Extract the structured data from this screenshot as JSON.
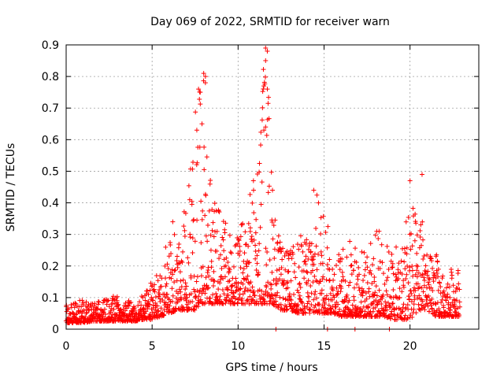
{
  "chart_data": {
    "type": "scatter",
    "title": "Day 069 of 2022, SRMTID for receiver warn",
    "xlabel": "GPS time / hours",
    "ylabel": "SRMTID / TECUs",
    "xlim": [
      0,
      24
    ],
    "ylim": [
      0,
      0.9
    ],
    "xticks": [
      0,
      5,
      10,
      15,
      20
    ],
    "yticks": [
      0,
      0.1,
      0.2,
      0.3,
      0.4,
      0.5,
      0.6,
      0.7,
      0.8,
      0.9
    ],
    "grid": true,
    "marker": "+",
    "color": "#ff0000",
    "series": [
      {
        "name": "SRMTID",
        "envelope": [
          [
            0.0,
            0.02,
            0.08
          ],
          [
            0.5,
            0.02,
            0.09
          ],
          [
            1.0,
            0.02,
            0.095
          ],
          [
            1.5,
            0.025,
            0.08
          ],
          [
            2.0,
            0.025,
            0.09
          ],
          [
            2.5,
            0.025,
            0.1
          ],
          [
            3.0,
            0.025,
            0.11
          ],
          [
            3.5,
            0.025,
            0.09
          ],
          [
            4.0,
            0.025,
            0.09
          ],
          [
            4.5,
            0.03,
            0.11
          ],
          [
            5.0,
            0.03,
            0.16
          ],
          [
            5.5,
            0.04,
            0.2
          ],
          [
            6.0,
            0.05,
            0.34
          ],
          [
            6.5,
            0.06,
            0.3
          ],
          [
            7.0,
            0.06,
            0.4
          ],
          [
            7.5,
            0.06,
            0.7
          ],
          [
            7.8,
            0.08,
            0.76
          ],
          [
            8.0,
            0.08,
            0.82
          ],
          [
            8.5,
            0.08,
            0.4
          ],
          [
            9.0,
            0.08,
            0.4
          ],
          [
            9.5,
            0.08,
            0.3
          ],
          [
            10.0,
            0.08,
            0.3
          ],
          [
            10.5,
            0.08,
            0.4
          ],
          [
            11.0,
            0.08,
            0.5
          ],
          [
            11.5,
            0.08,
            0.89
          ],
          [
            11.7,
            0.08,
            0.88
          ],
          [
            12.0,
            0.08,
            0.45
          ],
          [
            12.5,
            0.06,
            0.26
          ],
          [
            13.0,
            0.06,
            0.25
          ],
          [
            13.5,
            0.05,
            0.3
          ],
          [
            14.0,
            0.05,
            0.3
          ],
          [
            14.5,
            0.05,
            0.44
          ],
          [
            15.0,
            0.05,
            0.4
          ],
          [
            15.5,
            0.05,
            0.25
          ],
          [
            16.0,
            0.04,
            0.25
          ],
          [
            16.5,
            0.04,
            0.29
          ],
          [
            17.0,
            0.04,
            0.27
          ],
          [
            17.5,
            0.04,
            0.25
          ],
          [
            18.0,
            0.04,
            0.32
          ],
          [
            18.5,
            0.04,
            0.28
          ],
          [
            19.0,
            0.03,
            0.26
          ],
          [
            19.5,
            0.03,
            0.26
          ],
          [
            20.0,
            0.03,
            0.48
          ],
          [
            20.5,
            0.06,
            0.3
          ],
          [
            20.7,
            0.06,
            0.49
          ],
          [
            21.0,
            0.06,
            0.23
          ],
          [
            21.5,
            0.04,
            0.25
          ],
          [
            22.0,
            0.04,
            0.15
          ],
          [
            22.5,
            0.04,
            0.21
          ],
          [
            22.9,
            0.04,
            0.2
          ]
        ],
        "outliers": [
          [
            7.7,
            0.76
          ],
          [
            7.8,
            0.75
          ],
          [
            8.0,
            0.81
          ],
          [
            8.1,
            0.8
          ],
          [
            8.1,
            0.78
          ],
          [
            7.9,
            0.65
          ],
          [
            7.6,
            0.63
          ],
          [
            11.6,
            0.89
          ],
          [
            11.7,
            0.88
          ],
          [
            11.6,
            0.85
          ],
          [
            11.5,
            0.77
          ],
          [
            11.7,
            0.76
          ],
          [
            11.6,
            0.64
          ],
          [
            11.5,
            0.63
          ],
          [
            12.0,
            0.44
          ],
          [
            10.9,
            0.44
          ],
          [
            14.4,
            0.44
          ],
          [
            20.7,
            0.49
          ],
          [
            20.0,
            0.47
          ],
          [
            18.2,
            0.31
          ],
          [
            6.2,
            0.34
          ],
          [
            12.2,
            0.0
          ],
          [
            15.2,
            0.0
          ],
          [
            16.8,
            0.0
          ],
          [
            18.8,
            0.0
          ]
        ]
      }
    ]
  }
}
